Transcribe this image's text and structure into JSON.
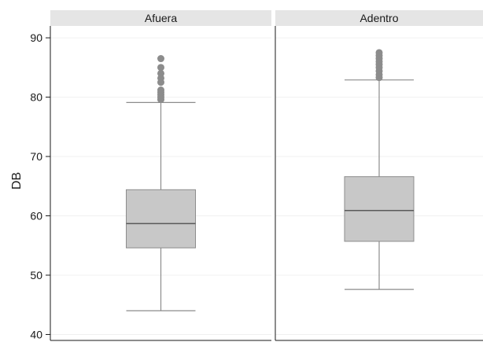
{
  "chart_data": {
    "type": "boxplot",
    "title": "",
    "xlabel": "",
    "ylabel": "DB",
    "ylim": [
      39,
      92
    ],
    "yticks": [
      40,
      50,
      60,
      70,
      80,
      90
    ],
    "grid": true,
    "legend": "none",
    "colors": {
      "box_fill": "#c8c8c8",
      "box_stroke": "#8c8c8c",
      "median": "#5a5a5a",
      "whisker": "#8c8c8c",
      "outlier": "#8c8c8c",
      "strip": "#e5e5e5",
      "grid": "#f0f0f0"
    },
    "facets": [
      {
        "label": "Afuera",
        "whisker_low": 44,
        "q1": 54.6,
        "median": 58.7,
        "q3": 64.4,
        "whisker_high": 79.1,
        "outliers": [
          79.6,
          80.0,
          80.4,
          80.8,
          81.2,
          82.5,
          83.2,
          84.0,
          85.0,
          86.5
        ]
      },
      {
        "label": "Adentro",
        "whisker_low": 47.6,
        "q1": 55.7,
        "median": 60.9,
        "q3": 66.6,
        "whisker_high": 82.9,
        "outliers": [
          83.3,
          83.8,
          84.4,
          85.0,
          85.5,
          86.0,
          86.5,
          87.0,
          87.5
        ]
      }
    ]
  }
}
